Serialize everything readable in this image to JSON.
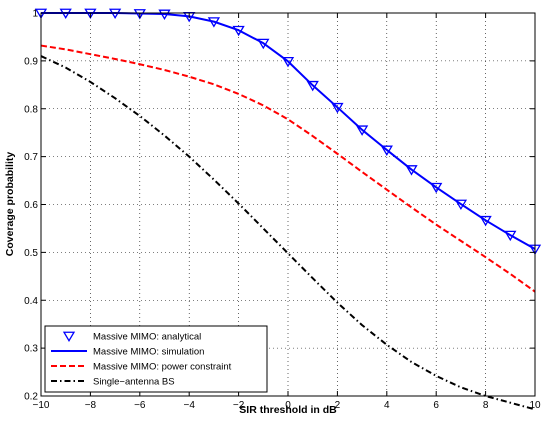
{
  "chart_data": {
    "type": "line",
    "title": "",
    "xlabel": "SIR threshold in dB",
    "ylabel": "Coverage probability",
    "xlim": [
      -10,
      10
    ],
    "ylim": [
      0.2,
      1
    ],
    "xticks": [
      -10,
      -8,
      -6,
      -4,
      -2,
      0,
      2,
      4,
      6,
      8,
      10
    ],
    "xtick_labels": [
      "−10",
      "−8",
      "−6",
      "−4",
      "−2",
      "0",
      "2",
      "4",
      "6",
      "8",
      "10"
    ],
    "yticks": [
      0.2,
      0.3,
      0.4,
      0.5,
      0.6,
      0.7,
      0.8,
      0.9,
      1
    ],
    "ytick_labels": [
      "0.2",
      "0.3",
      "0.4",
      "0.5",
      "0.6",
      "0.7",
      "0.8",
      "0.9",
      "1"
    ],
    "grid": true,
    "legend_position": "bottom-left",
    "series": [
      {
        "name": "Massive MIMO: analytical",
        "style": "markers",
        "marker": "triangle-down",
        "color": "#0000ff",
        "x": [
          -10,
          -9,
          -8,
          -7,
          -6,
          -5,
          -4,
          -3,
          -2,
          -1,
          0,
          1,
          2,
          3,
          4,
          5,
          6,
          7,
          8,
          9,
          10
        ],
        "y": [
          1.0,
          1.0,
          1.0,
          1.0,
          0.999,
          0.998,
          0.993,
          0.982,
          0.964,
          0.937,
          0.899,
          0.849,
          0.803,
          0.756,
          0.714,
          0.673,
          0.636,
          0.601,
          0.567,
          0.536,
          0.507
        ]
      },
      {
        "name": "Massive MIMO: simulation",
        "style": "solid",
        "color": "#0000ff",
        "x": [
          -10,
          -9,
          -8,
          -7,
          -6,
          -5,
          -4,
          -3,
          -2,
          -1,
          0,
          1,
          2,
          3,
          4,
          5,
          6,
          7,
          8,
          9,
          10
        ],
        "y": [
          1.0,
          1.0,
          1.0,
          1.0,
          0.999,
          0.998,
          0.993,
          0.982,
          0.964,
          0.937,
          0.899,
          0.849,
          0.803,
          0.756,
          0.714,
          0.673,
          0.636,
          0.601,
          0.567,
          0.536,
          0.507
        ]
      },
      {
        "name": "Massive MIMO: power constraint",
        "style": "dashed",
        "color": "#ff0000",
        "x": [
          -10,
          -9,
          -8,
          -7,
          -6,
          -5,
          -4,
          -3,
          -2,
          -1,
          0,
          1,
          2,
          3,
          4,
          5,
          6,
          7,
          8,
          9,
          10
        ],
        "y": [
          0.932,
          0.924,
          0.914,
          0.904,
          0.893,
          0.881,
          0.867,
          0.851,
          0.831,
          0.807,
          0.778,
          0.743,
          0.706,
          0.668,
          0.631,
          0.594,
          0.558,
          0.524,
          0.49,
          0.455,
          0.418
        ]
      },
      {
        "name": "Single−antenna BS",
        "style": "dashdot",
        "color": "#000000",
        "x": [
          -10,
          -9,
          -8,
          -7,
          -6,
          -5,
          -4,
          -3,
          -2,
          -1,
          0,
          1,
          2,
          3,
          4,
          5,
          6,
          7,
          8,
          9,
          10
        ],
        "y": [
          0.91,
          0.886,
          0.856,
          0.822,
          0.785,
          0.744,
          0.7,
          0.652,
          0.602,
          0.55,
          0.498,
          0.446,
          0.395,
          0.348,
          0.307,
          0.271,
          0.242,
          0.218,
          0.2,
          0.186,
          0.172
        ]
      }
    ]
  }
}
